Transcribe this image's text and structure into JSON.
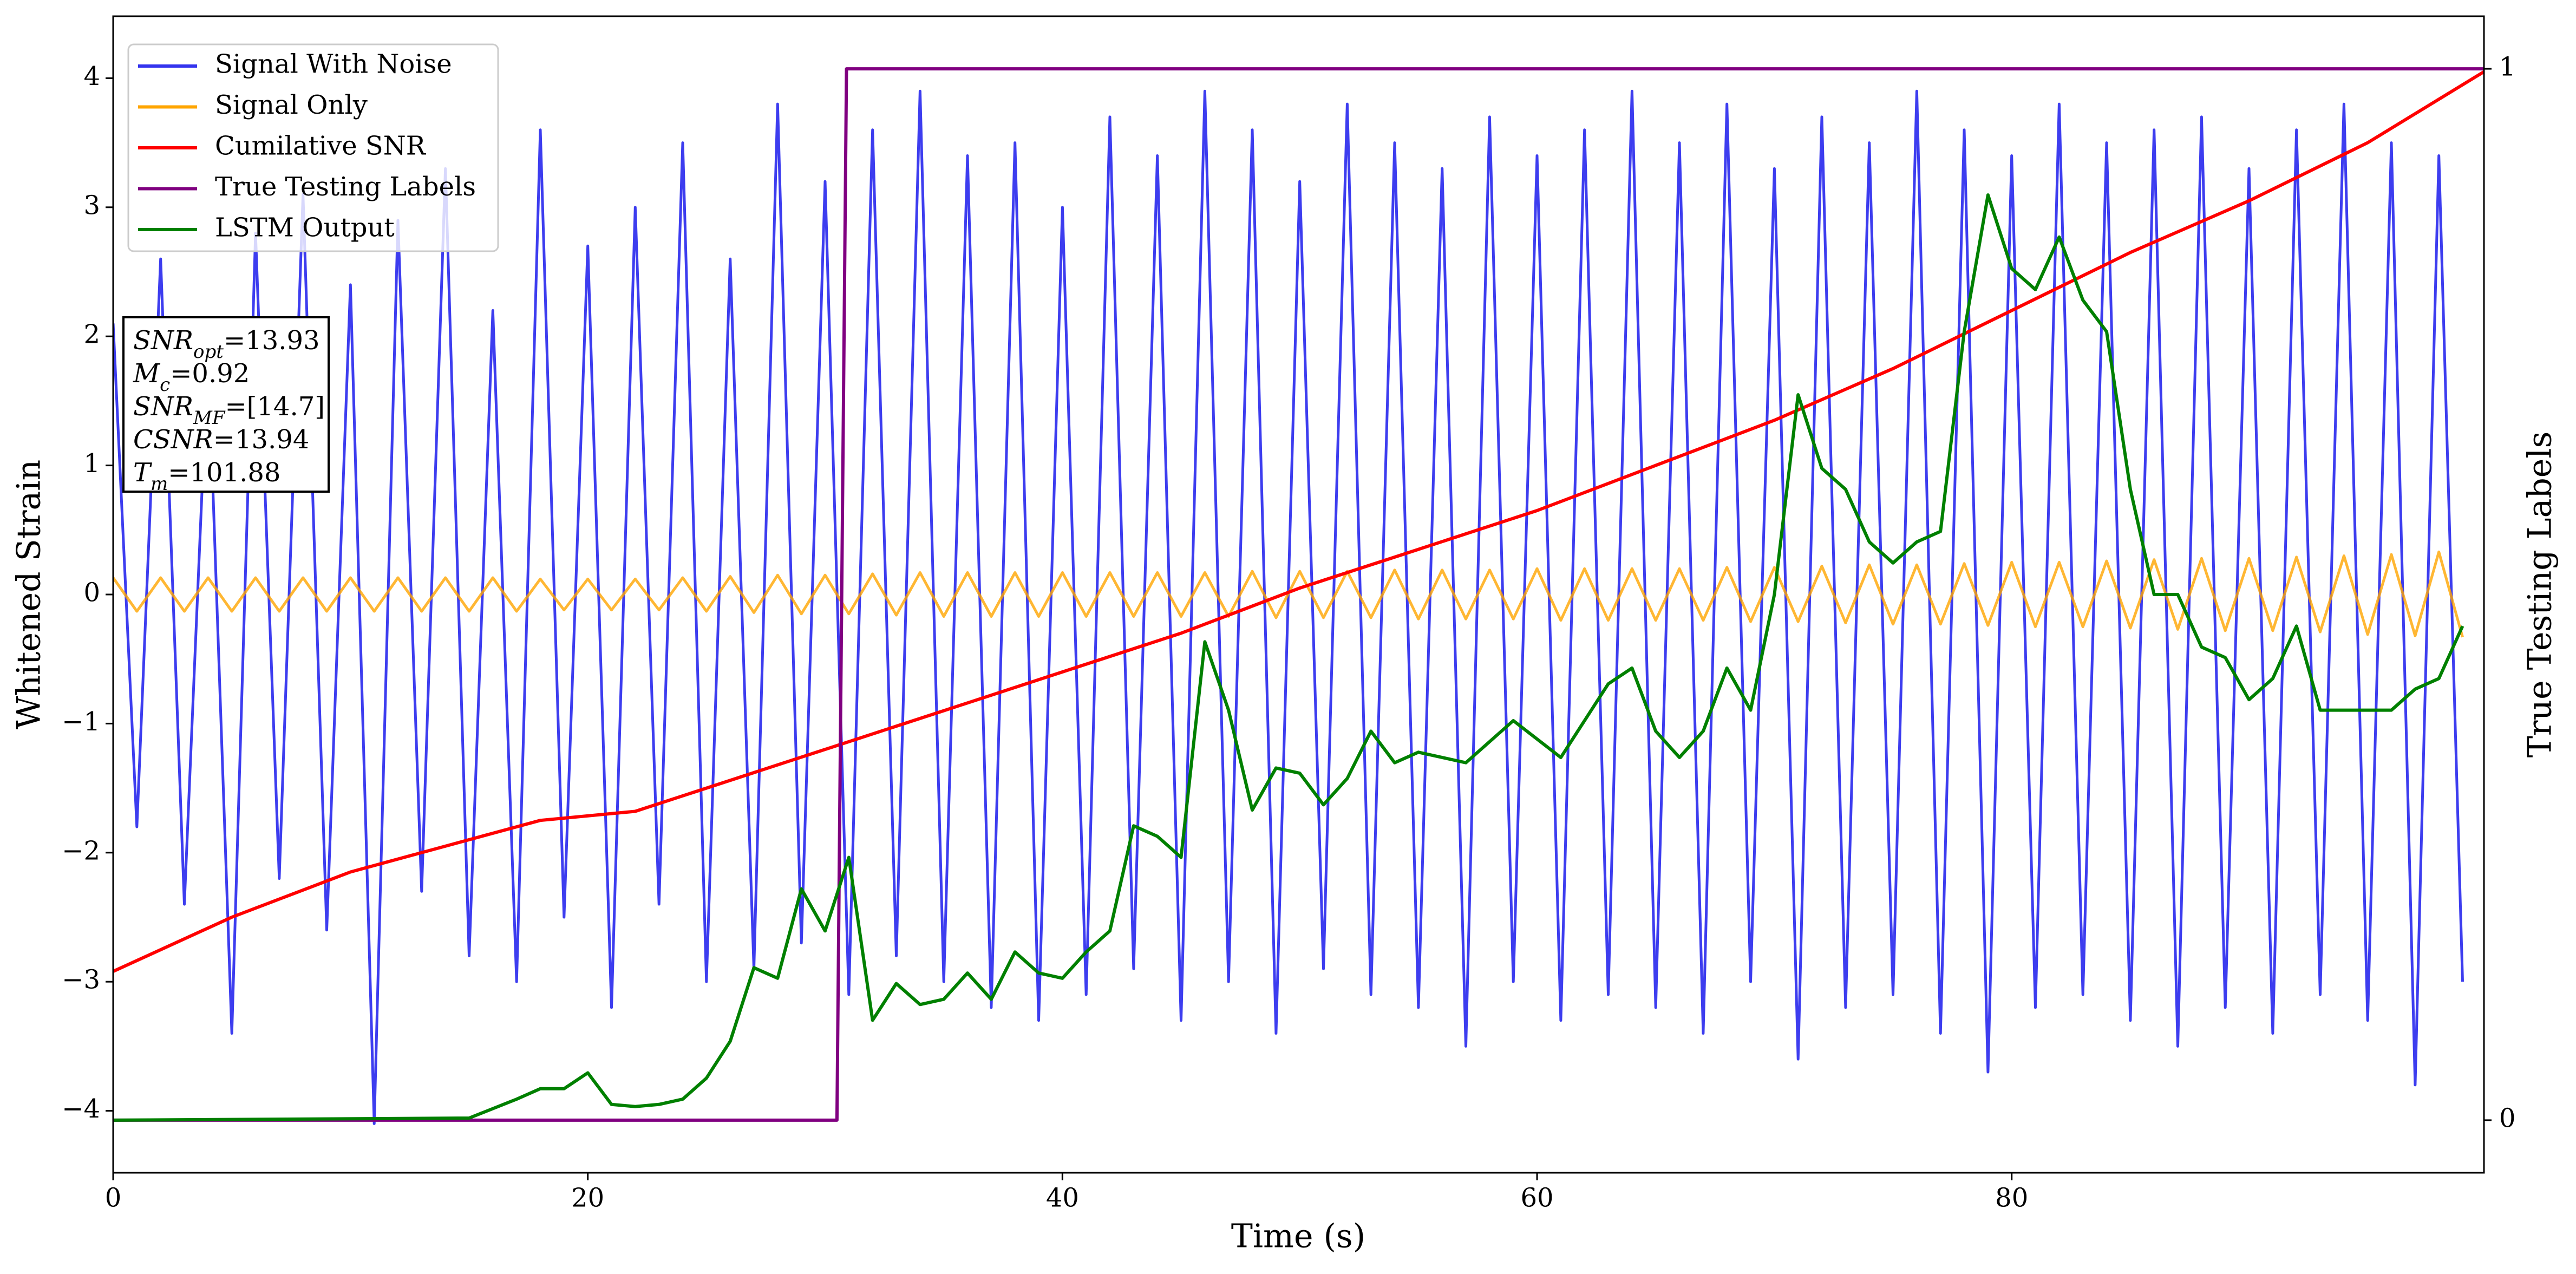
{
  "chart_data": {
    "type": "line",
    "xlabel": "Time (s)",
    "ylabel": "Whitened Strain",
    "y2label": "True Testing Labels",
    "xlim": [
      0,
      99.9
    ],
    "ylim": [
      -4.48,
      4.48
    ],
    "y2lim": [
      -0.05,
      1.05
    ],
    "xticks": [
      0,
      20,
      40,
      60,
      80
    ],
    "yticks": [
      {
        "value": -4,
        "label": "−4"
      },
      {
        "value": -3,
        "label": "−3"
      },
      {
        "value": -2,
        "label": "−2"
      },
      {
        "value": -1,
        "label": "−1"
      },
      0,
      1,
      2,
      3,
      4
    ],
    "y2ticks": [
      0,
      1
    ],
    "legend": "upper left",
    "annotation": [
      {
        "base": "SNR",
        "sub": "opt",
        "text": "=13.93"
      },
      {
        "base": "M",
        "sub": "c",
        "text": "=0.92"
      },
      {
        "base": "SNR",
        "sub": "MF",
        "text": "=[14.7]"
      },
      {
        "base": "CSNR",
        "text": "=13.94"
      },
      {
        "base": "T",
        "sub": "m",
        "text": "=101.88"
      }
    ],
    "series": [
      {
        "name": "Signal With Noise",
        "color": "#3333ee",
        "x": [
          0,
          1,
          2,
          3,
          4,
          5,
          6,
          7,
          8,
          9,
          10,
          11,
          12,
          13,
          14,
          15,
          16,
          17,
          18,
          19,
          20,
          21,
          22,
          23,
          24,
          25,
          26,
          27,
          28,
          29,
          30,
          31,
          32,
          33,
          34,
          35,
          36,
          37,
          38,
          39,
          40,
          41,
          42,
          43,
          44,
          45,
          46,
          47,
          48,
          49,
          50,
          51,
          52,
          53,
          54,
          55,
          56,
          57,
          58,
          59,
          60,
          61,
          62,
          63,
          64,
          65,
          66,
          67,
          68,
          69,
          70,
          71,
          72,
          73,
          74,
          75,
          76,
          77,
          78,
          79,
          80,
          81,
          82,
          83,
          84,
          85,
          86,
          87,
          88,
          89,
          90,
          91,
          92,
          93,
          94,
          95,
          96,
          97,
          98,
          99
        ],
        "values": [
          2.1,
          -1.8,
          2.6,
          -2.4,
          1.9,
          -3.4,
          2.8,
          -2.2,
          3.1,
          -2.6,
          2.4,
          -4.1,
          2.9,
          -2.3,
          3.3,
          -2.8,
          2.2,
          -3.0,
          3.6,
          -2.5,
          2.7,
          -3.2,
          3.0,
          -2.4,
          3.5,
          -3.0,
          2.6,
          -2.9,
          3.8,
          -2.7,
          3.2,
          -3.1,
          3.6,
          -2.8,
          3.9,
          -3.0,
          3.4,
          -3.2,
          3.5,
          -3.3,
          3.0,
          -3.1,
          3.7,
          -2.9,
          3.4,
          -3.3,
          3.9,
          -3.0,
          3.6,
          -3.4,
          3.2,
          -2.9,
          3.8,
          -3.1,
          3.5,
          -3.2,
          3.3,
          -3.5,
          3.7,
          -3.0,
          3.4,
          -3.3,
          3.6,
          -3.1,
          3.9,
          -3.2,
          3.5,
          -3.4,
          3.8,
          -3.0,
          3.3,
          -3.6,
          3.7,
          -3.2,
          3.5,
          -3.1,
          3.9,
          -3.4,
          3.6,
          -3.7,
          3.4,
          -3.2,
          3.8,
          -3.1,
          3.5,
          -3.3,
          3.6,
          -3.5,
          3.7,
          -3.2,
          3.3,
          -3.4,
          3.6,
          -3.1,
          3.8,
          -3.3,
          3.5,
          -3.8,
          3.4,
          -3.0
        ]
      },
      {
        "name": "Signal Only",
        "color": "#ffa500",
        "x": [
          0,
          1,
          2,
          3,
          4,
          5,
          6,
          7,
          8,
          9,
          10,
          11,
          12,
          13,
          14,
          15,
          16,
          17,
          18,
          19,
          20,
          21,
          22,
          23,
          24,
          25,
          26,
          27,
          28,
          29,
          30,
          31,
          32,
          33,
          34,
          35,
          36,
          37,
          38,
          39,
          40,
          41,
          42,
          43,
          44,
          45,
          46,
          47,
          48,
          49,
          50,
          51,
          52,
          53,
          54,
          55,
          56,
          57,
          58,
          59,
          60,
          61,
          62,
          63,
          64,
          65,
          66,
          67,
          68,
          69,
          70,
          71,
          72,
          73,
          74,
          75,
          76,
          77,
          78,
          79,
          80,
          81,
          82,
          83,
          84,
          85,
          86,
          87,
          88,
          89,
          90,
          91,
          92,
          93,
          94,
          95,
          96,
          97,
          98,
          99
        ],
        "values": [
          0.13,
          -0.13,
          0.13,
          -0.13,
          0.13,
          -0.13,
          0.13,
          -0.13,
          0.13,
          -0.13,
          0.13,
          -0.13,
          0.13,
          -0.13,
          0.13,
          -0.13,
          0.13,
          -0.13,
          0.12,
          -0.12,
          0.12,
          -0.12,
          0.12,
          -0.12,
          0.13,
          -0.13,
          0.14,
          -0.14,
          0.15,
          -0.15,
          0.15,
          -0.15,
          0.16,
          -0.16,
          0.17,
          -0.17,
          0.17,
          -0.17,
          0.17,
          -0.17,
          0.17,
          -0.17,
          0.17,
          -0.17,
          0.17,
          -0.17,
          0.17,
          -0.17,
          0.18,
          -0.18,
          0.18,
          -0.18,
          0.18,
          -0.18,
          0.19,
          -0.19,
          0.19,
          -0.19,
          0.19,
          -0.19,
          0.2,
          -0.2,
          0.2,
          -0.2,
          0.2,
          -0.2,
          0.2,
          -0.2,
          0.21,
          -0.21,
          0.21,
          -0.21,
          0.22,
          -0.22,
          0.23,
          -0.23,
          0.23,
          -0.23,
          0.24,
          -0.24,
          0.25,
          -0.25,
          0.25,
          -0.25,
          0.26,
          -0.26,
          0.27,
          -0.27,
          0.28,
          -0.28,
          0.28,
          -0.28,
          0.29,
          -0.29,
          0.3,
          -0.31,
          0.31,
          -0.32,
          0.33,
          -0.33
        ]
      },
      {
        "name": "Cumilative SNR",
        "color": "#ff0000",
        "x": [
          0,
          5,
          10,
          15,
          18,
          22,
          25,
          30,
          35,
          40,
          45,
          50,
          55,
          60,
          65,
          70,
          75,
          80,
          85,
          90,
          95,
          99.9
        ],
        "values": [
          -2.92,
          -2.5,
          -2.15,
          -1.9,
          -1.75,
          -1.68,
          -1.5,
          -1.2,
          -0.9,
          -0.6,
          -0.3,
          0.05,
          0.35,
          0.65,
          1.0,
          1.35,
          1.75,
          2.2,
          2.65,
          3.05,
          3.5,
          4.05
        ]
      },
      {
        "name": "True Testing Labels",
        "color": "#800080",
        "axis": "y2",
        "x": [
          0,
          30.5,
          30.9,
          99.9
        ],
        "values": [
          0,
          0,
          1,
          1
        ]
      },
      {
        "name": "LSTM Output",
        "color": "#008000",
        "axis": "y2",
        "x": [
          0,
          15,
          17,
          18,
          19,
          20,
          21,
          22,
          23,
          24,
          25,
          26,
          27,
          28,
          29,
          30,
          31,
          32,
          33,
          34,
          35,
          36,
          37,
          38,
          39,
          40,
          41,
          42,
          43,
          44,
          45,
          46,
          47,
          48,
          49,
          50,
          51,
          52,
          53,
          54,
          55,
          57,
          59,
          61,
          63,
          64,
          65,
          66,
          67,
          68,
          69,
          70,
          71,
          72,
          73,
          74,
          75,
          76,
          77,
          78,
          79,
          80,
          81,
          82,
          83,
          84,
          85,
          86,
          87,
          88,
          89,
          90,
          91,
          92,
          93,
          94,
          95,
          96,
          97,
          98,
          99
        ],
        "values": [
          0,
          0.002,
          0.02,
          0.03,
          0.03,
          0.045,
          0.015,
          0.013,
          0.015,
          0.02,
          0.04,
          0.075,
          0.145,
          0.135,
          0.22,
          0.18,
          0.25,
          0.095,
          0.13,
          0.11,
          0.115,
          0.14,
          0.115,
          0.16,
          0.14,
          0.135,
          0.16,
          0.18,
          0.28,
          0.27,
          0.25,
          0.455,
          0.39,
          0.295,
          0.335,
          0.33,
          0.3,
          0.325,
          0.37,
          0.34,
          0.35,
          0.34,
          0.38,
          0.345,
          0.415,
          0.43,
          0.37,
          0.345,
          0.37,
          0.43,
          0.39,
          0.5,
          0.69,
          0.62,
          0.6,
          0.55,
          0.53,
          0.55,
          0.56,
          0.75,
          0.88,
          0.81,
          0.79,
          0.84,
          0.78,
          0.75,
          0.6,
          0.5,
          0.5,
          0.45,
          0.44,
          0.4,
          0.42,
          0.47,
          0.39,
          0.39,
          0.39,
          0.39,
          0.41,
          0.42,
          0.47
        ]
      }
    ]
  }
}
